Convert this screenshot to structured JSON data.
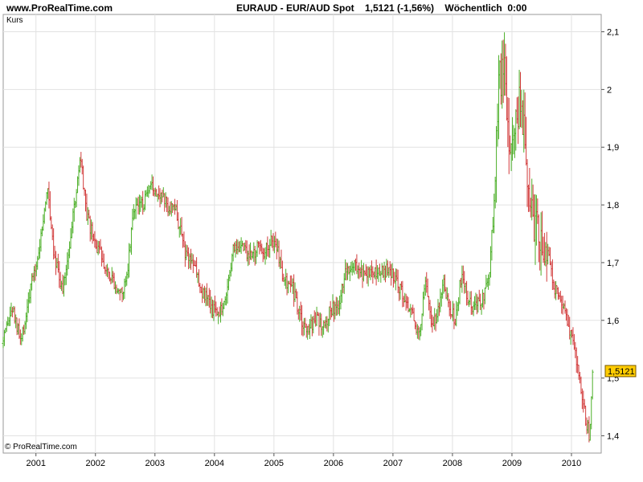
{
  "header": {
    "site": "www.ProRealTime.com",
    "title": "EURAUD - EUR/AUD Spot    1,5121 (-1,56%)    Wöchentlich  0:00"
  },
  "chart_data": {
    "type": "ohlc-bar",
    "instrument": "EURAUD - EUR/AUD Spot",
    "last_price_label": "1,5121",
    "panel_label": "Kurs",
    "copyright": "© ProRealTime.com",
    "timeframe": "Wöchentlich",
    "up_color": "#4caf28",
    "down_color": "#d23c3c",
    "grid": true,
    "ylim": [
      1.37,
      2.13
    ],
    "xlim": [
      2000.45,
      2010.5
    ],
    "y_ticks": [
      {
        "value": 1.4,
        "label": "1,4"
      },
      {
        "value": 1.5,
        "label": "1,5"
      },
      {
        "value": 1.6,
        "label": "1,6"
      },
      {
        "value": 1.7,
        "label": "1,7"
      },
      {
        "value": 1.8,
        "label": "1,8"
      },
      {
        "value": 1.9,
        "label": "1,9"
      },
      {
        "value": 2.0,
        "label": "2"
      },
      {
        "value": 2.1,
        "label": "2,1"
      }
    ],
    "x_ticks": [
      {
        "value": 2001,
        "label": "2001"
      },
      {
        "value": 2002,
        "label": "2002"
      },
      {
        "value": 2003,
        "label": "2003"
      },
      {
        "value": 2004,
        "label": "2004"
      },
      {
        "value": 2005,
        "label": "2005"
      },
      {
        "value": 2006,
        "label": "2006"
      },
      {
        "value": 2007,
        "label": "2007"
      },
      {
        "value": 2008,
        "label": "2008"
      },
      {
        "value": 2009,
        "label": "2009"
      },
      {
        "value": 2010,
        "label": "2010"
      }
    ],
    "price_path": [
      [
        2000.45,
        1.56
      ],
      [
        2000.6,
        1.62
      ],
      [
        2000.75,
        1.56
      ],
      [
        2000.9,
        1.65
      ],
      [
        2001.05,
        1.72
      ],
      [
        2001.2,
        1.83
      ],
      [
        2001.3,
        1.72
      ],
      [
        2001.45,
        1.65
      ],
      [
        2001.6,
        1.76
      ],
      [
        2001.75,
        1.88
      ],
      [
        2001.85,
        1.78
      ],
      [
        2002.0,
        1.73
      ],
      [
        2002.15,
        1.7
      ],
      [
        2002.3,
        1.67
      ],
      [
        2002.45,
        1.64
      ],
      [
        2002.55,
        1.7
      ],
      [
        2002.65,
        1.8
      ],
      [
        2002.8,
        1.8
      ],
      [
        2002.95,
        1.83
      ],
      [
        2003.1,
        1.82
      ],
      [
        2003.2,
        1.8
      ],
      [
        2003.35,
        1.79
      ],
      [
        2003.5,
        1.72
      ],
      [
        2003.65,
        1.7
      ],
      [
        2003.8,
        1.65
      ],
      [
        2003.95,
        1.62
      ],
      [
        2004.1,
        1.62
      ],
      [
        2004.2,
        1.64
      ],
      [
        2004.3,
        1.72
      ],
      [
        2004.45,
        1.73
      ],
      [
        2004.6,
        1.71
      ],
      [
        2004.75,
        1.73
      ],
      [
        2004.85,
        1.72
      ],
      [
        2004.95,
        1.74
      ],
      [
        2005.05,
        1.73
      ],
      [
        2005.15,
        1.67
      ],
      [
        2005.3,
        1.66
      ],
      [
        2005.45,
        1.6
      ],
      [
        2005.55,
        1.58
      ],
      [
        2005.7,
        1.6
      ],
      [
        2005.85,
        1.59
      ],
      [
        2005.95,
        1.62
      ],
      [
        2006.1,
        1.62
      ],
      [
        2006.2,
        1.69
      ],
      [
        2006.35,
        1.7
      ],
      [
        2006.5,
        1.68
      ],
      [
        2006.65,
        1.68
      ],
      [
        2006.8,
        1.69
      ],
      [
        2007.0,
        1.68
      ],
      [
        2007.15,
        1.65
      ],
      [
        2007.3,
        1.61
      ],
      [
        2007.45,
        1.58
      ],
      [
        2007.55,
        1.68
      ],
      [
        2007.65,
        1.58
      ],
      [
        2007.75,
        1.62
      ],
      [
        2007.85,
        1.67
      ],
      [
        2007.95,
        1.62
      ],
      [
        2008.05,
        1.6
      ],
      [
        2008.15,
        1.68
      ],
      [
        2008.25,
        1.64
      ],
      [
        2008.35,
        1.62
      ],
      [
        2008.5,
        1.64
      ],
      [
        2008.6,
        1.66
      ],
      [
        2008.7,
        1.8
      ],
      [
        2008.78,
        2.0
      ],
      [
        2008.85,
        2.05
      ],
      [
        2008.95,
        1.92
      ],
      [
        2009.05,
        1.95
      ],
      [
        2009.15,
        1.98
      ],
      [
        2009.25,
        1.86
      ],
      [
        2009.35,
        1.78
      ],
      [
        2009.5,
        1.75
      ],
      [
        2009.6,
        1.72
      ],
      [
        2009.7,
        1.66
      ],
      [
        2009.8,
        1.63
      ],
      [
        2009.9,
        1.62
      ],
      [
        2010.0,
        1.57
      ],
      [
        2010.1,
        1.52
      ],
      [
        2010.2,
        1.45
      ],
      [
        2010.3,
        1.4
      ],
      [
        2010.35,
        1.5
      ],
      [
        2010.37,
        1.51
      ]
    ]
  }
}
